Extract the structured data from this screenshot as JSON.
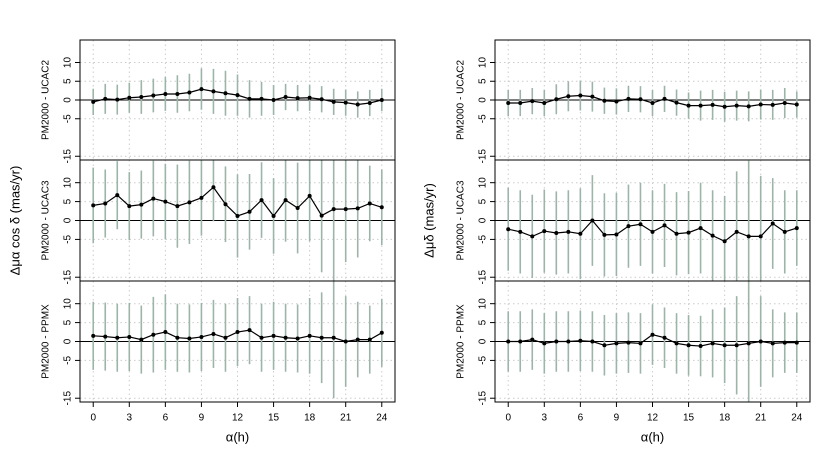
{
  "chart_data": [
    {
      "type": "errorbar",
      "panel_label": "PM2000 - UCAC2",
      "color": "#000000",
      "error_color": "#9db4a8",
      "x": [
        0,
        1,
        2,
        3,
        4,
        5,
        6,
        7,
        8,
        9,
        10,
        11,
        12,
        13,
        14,
        15,
        16,
        17,
        18,
        19,
        20,
        21,
        22,
        23,
        24
      ],
      "values": [
        -0.5,
        0.3,
        0.1,
        0.6,
        0.8,
        1.2,
        1.6,
        1.6,
        2.0,
        2.9,
        2.3,
        1.8,
        1.3,
        0.3,
        0.3,
        0,
        0.8,
        0.5,
        0.6,
        0.2,
        -0.5,
        -0.7,
        -1.2,
        -0.8,
        0
      ],
      "errors": [
        3.5,
        4,
        4,
        4,
        4.5,
        4.5,
        4.5,
        5,
        5,
        5.5,
        6,
        6,
        5.5,
        5,
        4.5,
        4,
        3.5,
        3.5,
        3.5,
        3.5,
        3.5,
        3.5,
        3.5,
        3.5,
        3
      ],
      "xlim": [
        -1.1,
        25.1
      ],
      "ylim": [
        -16,
        16
      ],
      "yticks": [
        -15,
        -5,
        0,
        5,
        10
      ],
      "reference_line": 0,
      "grid": true
    },
    {
      "type": "errorbar",
      "panel_label": "PM2000 - UCAC3",
      "ylabel": "Δμα cos δ (mas/yr)",
      "color": "#000000",
      "error_color": "#9db4a8",
      "x": [
        0,
        1,
        2,
        3,
        4,
        5,
        6,
        7,
        8,
        9,
        10,
        11,
        12,
        13,
        14,
        15,
        16,
        17,
        18,
        19,
        20,
        21,
        22,
        23,
        24
      ],
      "values": [
        4,
        4.5,
        6.7,
        3.8,
        4.2,
        5.8,
        5,
        3.8,
        4.8,
        6,
        8.8,
        4.3,
        1.2,
        2.3,
        5.4,
        1.2,
        5.4,
        3.3,
        6.5,
        1.3,
        3,
        3,
        3.2,
        4.5,
        3.5
      ],
      "errors": [
        10,
        9,
        9,
        9,
        9,
        10,
        10,
        11,
        11,
        10,
        9,
        10,
        11,
        10,
        10,
        10,
        11,
        12,
        12,
        15,
        20,
        14,
        13,
        10,
        10
      ],
      "xlim": [
        -1.1,
        25.1
      ],
      "ylim": [
        -16,
        16
      ],
      "yticks": [
        -15,
        -5,
        0,
        5,
        10
      ],
      "reference_line": 0,
      "grid": true
    },
    {
      "type": "errorbar",
      "panel_label": "PM2000 - PPMX",
      "xlabel": "α(h)",
      "color": "#000000",
      "error_color": "#9db4a8",
      "x": [
        0,
        1,
        2,
        3,
        4,
        5,
        6,
        7,
        8,
        9,
        10,
        11,
        12,
        13,
        14,
        15,
        16,
        17,
        18,
        19,
        20,
        21,
        22,
        23,
        24
      ],
      "values": [
        1.5,
        1.3,
        1,
        1.2,
        0.5,
        1.8,
        2.5,
        1,
        0.8,
        1.2,
        2,
        1,
        2.5,
        3,
        1,
        1.5,
        1,
        0.8,
        1.5,
        1,
        1,
        0,
        0.5,
        0.5,
        2.3
      ],
      "errors": [
        9,
        9,
        9,
        9,
        9,
        10,
        10,
        9,
        9,
        9,
        9,
        9,
        9,
        9,
        9,
        9,
        9,
        9,
        10,
        12,
        16,
        12,
        10,
        9,
        9
      ],
      "xlim": [
        -1.1,
        25.1
      ],
      "xticks": [
        0,
        3,
        6,
        9,
        12,
        15,
        18,
        21,
        24
      ],
      "ylim": [
        -16,
        16
      ],
      "yticks": [
        -15,
        -5,
        0,
        5,
        10
      ],
      "reference_line": 0,
      "grid": true
    },
    {
      "type": "errorbar",
      "panel_label": "PM2000 - UCAC2",
      "color": "#000000",
      "error_color": "#9db4a8",
      "x": [
        0,
        1,
        2,
        3,
        4,
        5,
        6,
        7,
        8,
        9,
        10,
        11,
        12,
        13,
        14,
        15,
        16,
        17,
        18,
        19,
        20,
        21,
        22,
        23,
        24
      ],
      "values": [
        -0.8,
        -0.8,
        -0.3,
        -0.8,
        0.2,
        1,
        1.2,
        0.9,
        -0.2,
        -0.4,
        0.3,
        0.2,
        -0.8,
        0.3,
        -0.7,
        -1.5,
        -1.5,
        -1.3,
        -1.8,
        -1.5,
        -1.7,
        -1.2,
        -1.3,
        -0.8,
        -1.2
      ],
      "errors": [
        3.5,
        3.5,
        3.5,
        3.5,
        4,
        4,
        4,
        4,
        3.5,
        3.5,
        3.5,
        3.5,
        3.5,
        3.5,
        3.5,
        3.5,
        4,
        4,
        4,
        4,
        4,
        4,
        4,
        4,
        3.5
      ],
      "xlim": [
        -1.1,
        25.1
      ],
      "ylim": [
        -16,
        16
      ],
      "yticks": [
        -15,
        -5,
        0,
        5,
        10
      ],
      "reference_line": 0,
      "grid": true
    },
    {
      "type": "errorbar",
      "panel_label": "PM2000 - UCAC3",
      "ylabel": "Δμδ (mas/yr)",
      "color": "#000000",
      "error_color": "#9db4a8",
      "x": [
        0,
        1,
        2,
        3,
        4,
        5,
        6,
        7,
        8,
        9,
        10,
        11,
        12,
        13,
        14,
        15,
        16,
        17,
        18,
        19,
        20,
        21,
        22,
        23,
        24
      ],
      "values": [
        -2.3,
        -3,
        -4.2,
        -2.8,
        -3.3,
        -3,
        -3.5,
        0,
        -3.8,
        -3.7,
        -1.5,
        -1,
        -3,
        -1.3,
        -3.5,
        -3.2,
        -2,
        -4,
        -5.5,
        -3,
        -4.2,
        -4.2,
        -0.8,
        -3,
        -2
      ],
      "errors": [
        11,
        11,
        11,
        11,
        11,
        11,
        12,
        12,
        11,
        11,
        11,
        11,
        11,
        11,
        11,
        11,
        12,
        12,
        12,
        16,
        20,
        16,
        12,
        11,
        10
      ],
      "xlim": [
        -1.1,
        25.1
      ],
      "ylim": [
        -16,
        16
      ],
      "yticks": [
        -15,
        -5,
        0,
        5,
        10
      ],
      "reference_line": 0,
      "grid": true
    },
    {
      "type": "errorbar",
      "panel_label": "PM2000 - PPMX",
      "xlabel": "α(h)",
      "color": "#000000",
      "error_color": "#9db4a8",
      "x": [
        0,
        1,
        2,
        3,
        4,
        5,
        6,
        7,
        8,
        9,
        10,
        11,
        12,
        13,
        14,
        15,
        16,
        17,
        18,
        19,
        20,
        21,
        22,
        23,
        24
      ],
      "values": [
        0,
        0,
        0.5,
        -0.5,
        0,
        0,
        0.2,
        0,
        -1,
        -0.5,
        -0.3,
        -0.5,
        1.8,
        1,
        -0.5,
        -1,
        -1.2,
        -0.5,
        -1,
        -1,
        -0.5,
        0,
        -0.5,
        -0.3,
        -0.3
      ],
      "errors": [
        8,
        8,
        8,
        8,
        8,
        8,
        8,
        8,
        8,
        8,
        8,
        8,
        8,
        8,
        8,
        8,
        8,
        9,
        10,
        13,
        17,
        12,
        9,
        8,
        8
      ],
      "xlim": [
        -1.1,
        25.1
      ],
      "xticks": [
        0,
        3,
        6,
        9,
        12,
        15,
        18,
        21,
        24
      ],
      "ylim": [
        -16,
        16
      ],
      "yticks": [
        -15,
        -5,
        0,
        5,
        10
      ],
      "reference_line": 0,
      "grid": true
    }
  ]
}
